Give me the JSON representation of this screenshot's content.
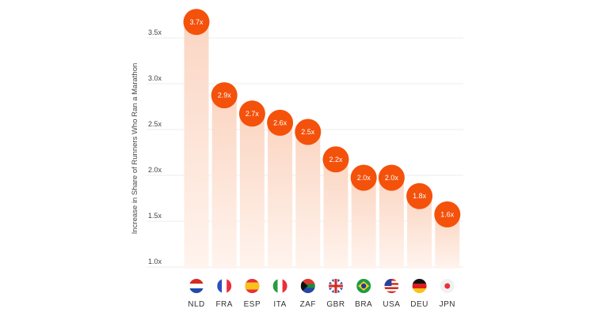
{
  "chart_data": {
    "type": "bar",
    "title": "",
    "xlabel": "",
    "ylabel": "Increase in Share of Runners Who Ran a Marathon",
    "ylim": [
      1.0,
      3.5
    ],
    "yticks": [
      "1.0x",
      "1.5x",
      "2.0x",
      "2.5x",
      "3.0x",
      "3.5x"
    ],
    "ytick_values": [
      1.0,
      1.5,
      2.0,
      2.5,
      3.0,
      3.5
    ],
    "categories": [
      "NLD",
      "FRA",
      "ESP",
      "ITA",
      "ZAF",
      "GBR",
      "BRA",
      "USA",
      "DEU",
      "JPN"
    ],
    "values": [
      3.7,
      2.9,
      2.7,
      2.6,
      2.5,
      2.2,
      2.0,
      2.0,
      1.8,
      1.6
    ],
    "value_labels": [
      "3.7x",
      "2.9x",
      "2.7x",
      "2.6x",
      "2.5x",
      "2.2x",
      "2.0x",
      "2.0x",
      "1.8x",
      "1.6x"
    ],
    "grid": true,
    "colors": {
      "marker": "#f4510b",
      "bar_top": "#fbd2bd",
      "bar_bottom": "#fff3ec",
      "grid": "#eeeeee"
    }
  }
}
